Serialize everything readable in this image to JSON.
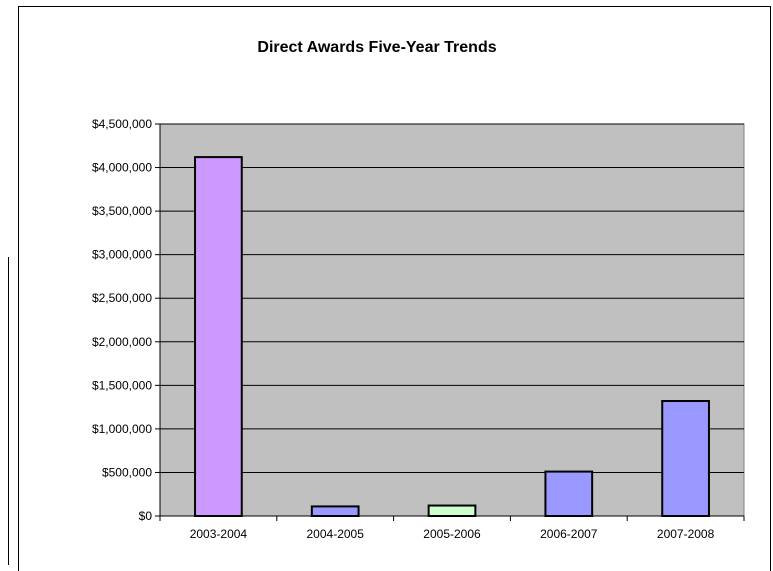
{
  "chart_data": {
    "type": "bar",
    "title": "Direct Awards Five-Year Trends",
    "xlabel": "",
    "ylabel": "",
    "categories": [
      "2003-2004",
      "2004-2005",
      "2005-2006",
      "2006-2007",
      "2007-2008"
    ],
    "values": [
      4120000,
      110000,
      120000,
      510000,
      1320000
    ],
    "bar_colors": [
      "#cc99ff",
      "#9999ff",
      "#ccffcc",
      "#9999ff",
      "#9999ff"
    ],
    "ylim": [
      0,
      4500000
    ],
    "yticks": [
      0,
      500000,
      1000000,
      1500000,
      2000000,
      2500000,
      3000000,
      3500000,
      4000000,
      4500000
    ],
    "ytick_labels": [
      "$0",
      "$500,000",
      "$1,000,000",
      "$1,500,000",
      "$2,000,000",
      "$2,500,000",
      "$3,000,000",
      "$3,500,000",
      "$4,000,000",
      "$4,500,000"
    ],
    "grid": true,
    "plot_background": "#c0c0c0",
    "legend": "none"
  }
}
